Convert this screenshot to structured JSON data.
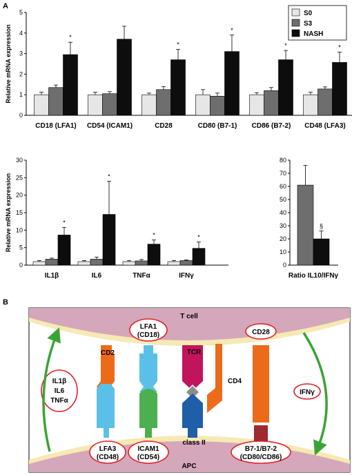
{
  "panels": {
    "a": "A",
    "b": "B"
  },
  "colors": {
    "S0": "#e6e6e6",
    "S3": "#6e6e6e",
    "NASH": "#0d0d0d",
    "membrane": "#d4a7bb",
    "arrow": "#3aa336",
    "ellipse": "#e31e24"
  },
  "legend": [
    {
      "name": "S0",
      "color": "#e6e6e6"
    },
    {
      "name": "S3",
      "color": "#6e6e6e"
    },
    {
      "name": "NASH",
      "color": "#0d0d0d"
    }
  ],
  "chart_data": [
    {
      "type": "bar",
      "ylabel": "Relative mRNA expression",
      "ylim": [
        0,
        5
      ],
      "yticks": [
        0,
        1,
        2,
        3,
        4,
        5
      ],
      "categories": [
        "CD18 (LFA1)",
        "CD54 (ICAM1)",
        "CD28",
        "CD80 (B7-1)",
        "CD86 (B7-2)",
        "CD48 (LFA3)"
      ],
      "series": [
        {
          "name": "S0",
          "values": [
            1.0,
            1.0,
            1.0,
            1.0,
            1.0,
            1.0
          ],
          "errors": [
            0.12,
            0.12,
            0.08,
            0.25,
            0.1,
            0.12
          ]
        },
        {
          "name": "S3",
          "values": [
            1.35,
            1.05,
            1.25,
            0.93,
            1.2,
            1.28
          ],
          "errors": [
            0.12,
            0.1,
            0.15,
            0.15,
            0.15,
            0.1
          ]
        },
        {
          "name": "NASH",
          "values": [
            2.95,
            3.7,
            2.7,
            3.1,
            2.7,
            2.57
          ],
          "errors": [
            0.6,
            0.63,
            0.5,
            0.8,
            0.45,
            0.5
          ]
        }
      ],
      "markers": [
        "*",
        "",
        "*",
        "*",
        "*",
        "*"
      ]
    },
    {
      "type": "bar",
      "ylabel": "Relative mRNA expression",
      "ylim": [
        0,
        30
      ],
      "yticks": [
        0,
        5,
        10,
        15,
        20,
        25,
        30
      ],
      "categories": [
        "IL1β",
        "IL6",
        "TNFα",
        "IFNγ"
      ],
      "series": [
        {
          "name": "S0",
          "values": [
            1.0,
            1.0,
            1.0,
            1.0
          ],
          "errors": [
            0.3,
            0.3,
            0.3,
            0.3
          ]
        },
        {
          "name": "S3",
          "values": [
            1.7,
            1.7,
            1.2,
            1.3
          ],
          "errors": [
            0.3,
            0.6,
            0.4,
            0.2
          ]
        },
        {
          "name": "NASH",
          "values": [
            8.6,
            14.5,
            6.0,
            4.8
          ],
          "errors": [
            2.2,
            9.5,
            1.2,
            1.8
          ]
        }
      ],
      "markers": [
        "*",
        "*",
        "*",
        "*"
      ]
    },
    {
      "type": "bar",
      "ylim": [
        0,
        80
      ],
      "yticks": [
        0,
        10,
        20,
        30,
        40,
        50,
        60,
        70,
        80
      ],
      "categories": [
        "Ratio IL10/IFNγ"
      ],
      "series": [
        {
          "name": "S3",
          "values": [
            61
          ],
          "errors": [
            15
          ]
        },
        {
          "name": "NASH",
          "values": [
            20
          ],
          "errors": [
            6
          ]
        }
      ],
      "markers": [
        "§"
      ]
    }
  ],
  "diagram": {
    "t_cell": "T cell",
    "apc": "APC",
    "cd2": "CD2",
    "lfa1": [
      "LFA1",
      "(CD18)"
    ],
    "tcr": "TCR",
    "cd28": "CD28",
    "cd4": "CD4",
    "class2": "class II",
    "lfa3": [
      "LFA3",
      "(CD48)"
    ],
    "icam1": [
      "ICAM1",
      "(CD54)"
    ],
    "b7": [
      "B7-1/B7-2",
      "(CD80/CD86)"
    ],
    "cytokines_left": [
      "IL1β",
      "IL6",
      "TNFα"
    ],
    "cytokine_right": "IFNγ"
  }
}
